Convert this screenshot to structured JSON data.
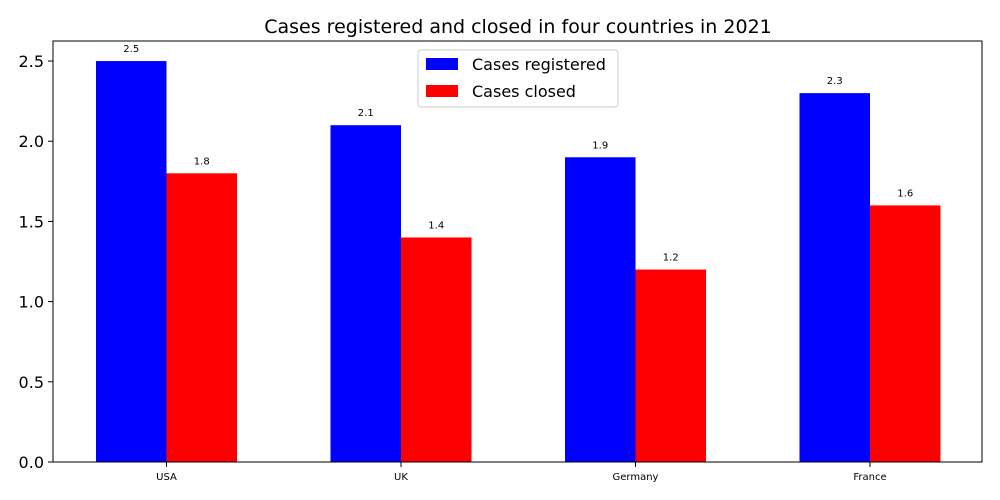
{
  "chart_data": {
    "type": "bar",
    "title": "Cases registered and closed in four countries in 2021",
    "xlabel": "",
    "ylabel": "",
    "categories": [
      "USA",
      "UK",
      "Germany",
      "France"
    ],
    "series": [
      {
        "name": "Cases registered",
        "color": "#0000ff",
        "values": [
          2.5,
          2.1,
          1.9,
          2.3
        ],
        "labels": [
          "2.5",
          "2.1",
          "1.9",
          "2.3"
        ]
      },
      {
        "name": "Cases closed",
        "color": "#ff0000",
        "values": [
          1.8,
          1.4,
          1.2,
          1.6
        ],
        "labels": [
          "1.8",
          "1.4",
          "1.2",
          "1.6"
        ]
      }
    ],
    "yticks": [
      "0.0",
      "0.5",
      "1.0",
      "1.5",
      "2.0",
      "2.5"
    ],
    "ylim": [
      0,
      2.625
    ],
    "grid": false,
    "legend": "top-center"
  }
}
